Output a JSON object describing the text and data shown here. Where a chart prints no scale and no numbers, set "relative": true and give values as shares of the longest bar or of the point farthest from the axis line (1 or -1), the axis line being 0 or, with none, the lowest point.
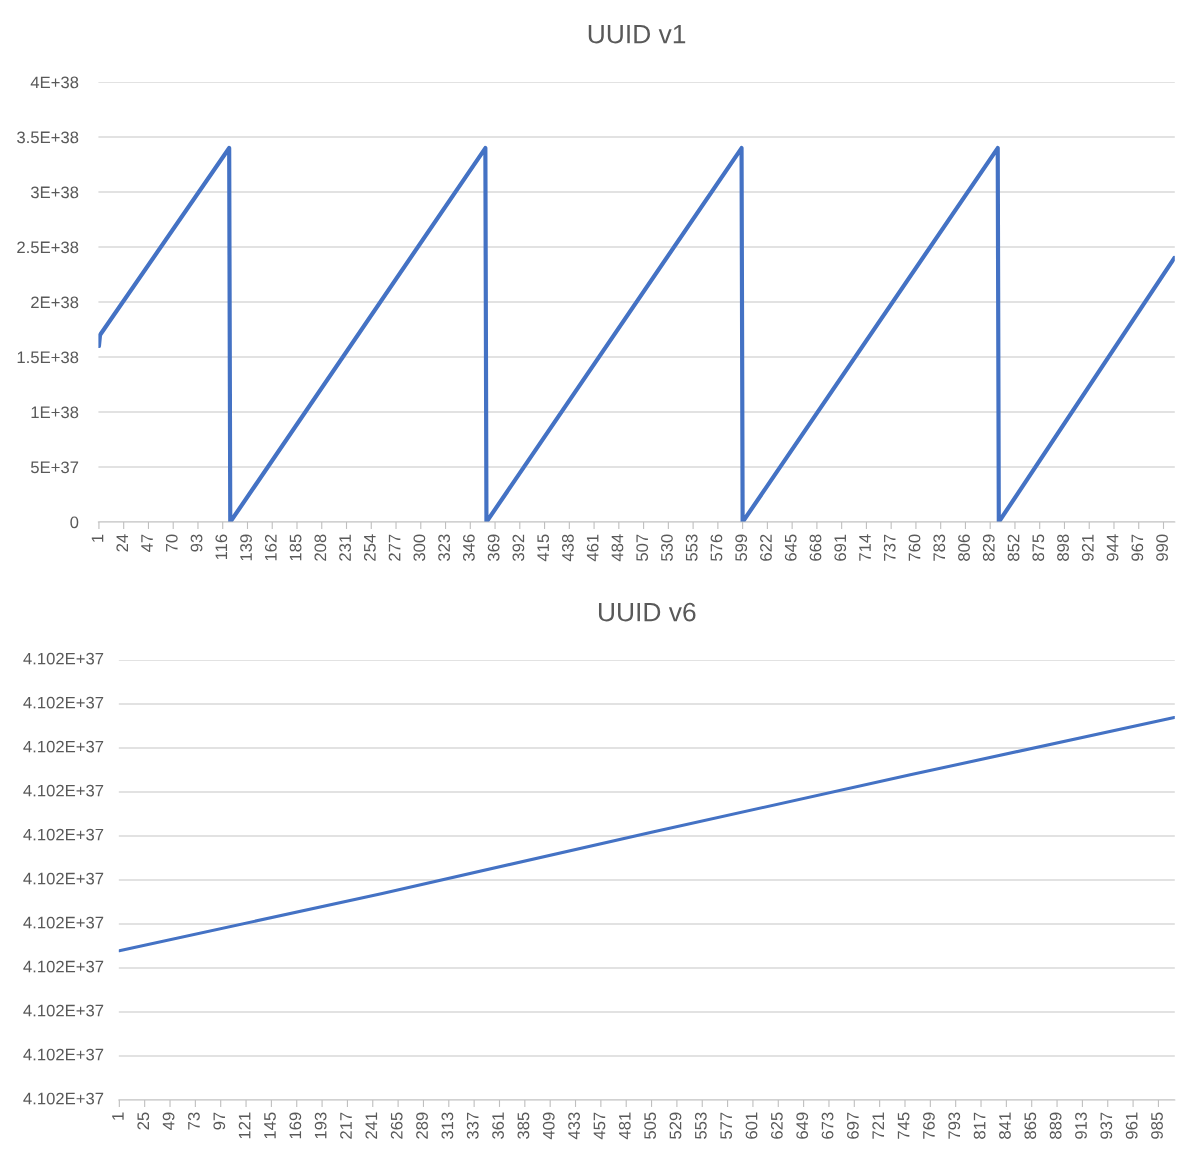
{
  "chart_data": [
    {
      "type": "line",
      "title": "UUID v1",
      "xlim": [
        0.5,
        1000.5
      ],
      "xticks": [
        1,
        24,
        47,
        70,
        93,
        116,
        139,
        162,
        185,
        208,
        231,
        254,
        277,
        300,
        323,
        346,
        369,
        392,
        415,
        438,
        461,
        484,
        507,
        530,
        553,
        576,
        599,
        622,
        645,
        668,
        691,
        714,
        737,
        760,
        783,
        806,
        829,
        852,
        875,
        898,
        921,
        944,
        967,
        990
      ],
      "ylim": [
        0,
        4e+38
      ],
      "yticks": [
        {
          "value": 0,
          "label": "0"
        },
        {
          "value": 5e+37,
          "label": "5E+37"
        },
        {
          "value": 1e+38,
          "label": "1E+38"
        },
        {
          "value": 1.5e+38,
          "label": "1.5E+38"
        },
        {
          "value": 2e+38,
          "label": "2E+38"
        },
        {
          "value": 2.5e+38,
          "label": "2.5E+38"
        },
        {
          "value": 3e+38,
          "label": "3E+38"
        },
        {
          "value": 3.5e+38,
          "label": "3.5E+38"
        },
        {
          "value": 4e+38,
          "label": "4E+38"
        }
      ],
      "grid": "y",
      "marker": "none",
      "line_style": "solid",
      "series": [
        {
          "color": "#4472c4",
          "x": [
            1,
            2,
            122,
            123,
            360,
            361,
            598,
            599,
            836,
            837,
            1000
          ],
          "values": [
            1.6e+38,
            1.7e+38,
            3.4e+38,
            0,
            3.4e+38,
            0,
            3.4e+38,
            0,
            3.4e+38,
            0,
            2.4e+38
          ]
        }
      ]
    },
    {
      "type": "line",
      "title": "UUID v6",
      "xlim": [
        0.5,
        1000.5
      ],
      "xticks": [
        1,
        25,
        49,
        73,
        97,
        121,
        145,
        169,
        193,
        217,
        241,
        265,
        289,
        313,
        337,
        361,
        385,
        409,
        433,
        457,
        481,
        505,
        529,
        553,
        577,
        601,
        625,
        649,
        673,
        697,
        721,
        745,
        769,
        793,
        817,
        841,
        865,
        889,
        913,
        937,
        961,
        985
      ],
      "relative": true,
      "annotations": [
        "4.102E+37",
        "4.102E+37",
        "4.102E+37",
        "4.102E+37",
        "4.102E+37",
        "4.102E+37",
        "4.102E+37",
        "4.102E+37",
        "4.102E+37",
        "4.102E+37",
        "4.102E+37"
      ],
      "grid": "y",
      "marker": "none",
      "line_style": "solid",
      "series": [
        {
          "color": "#4472c4",
          "x": [
            1,
            250,
            505,
            750,
            1000
          ],
          "values": [
            0.39,
            0.54,
            0.7,
            0.85,
            1
          ]
        }
      ]
    }
  ]
}
